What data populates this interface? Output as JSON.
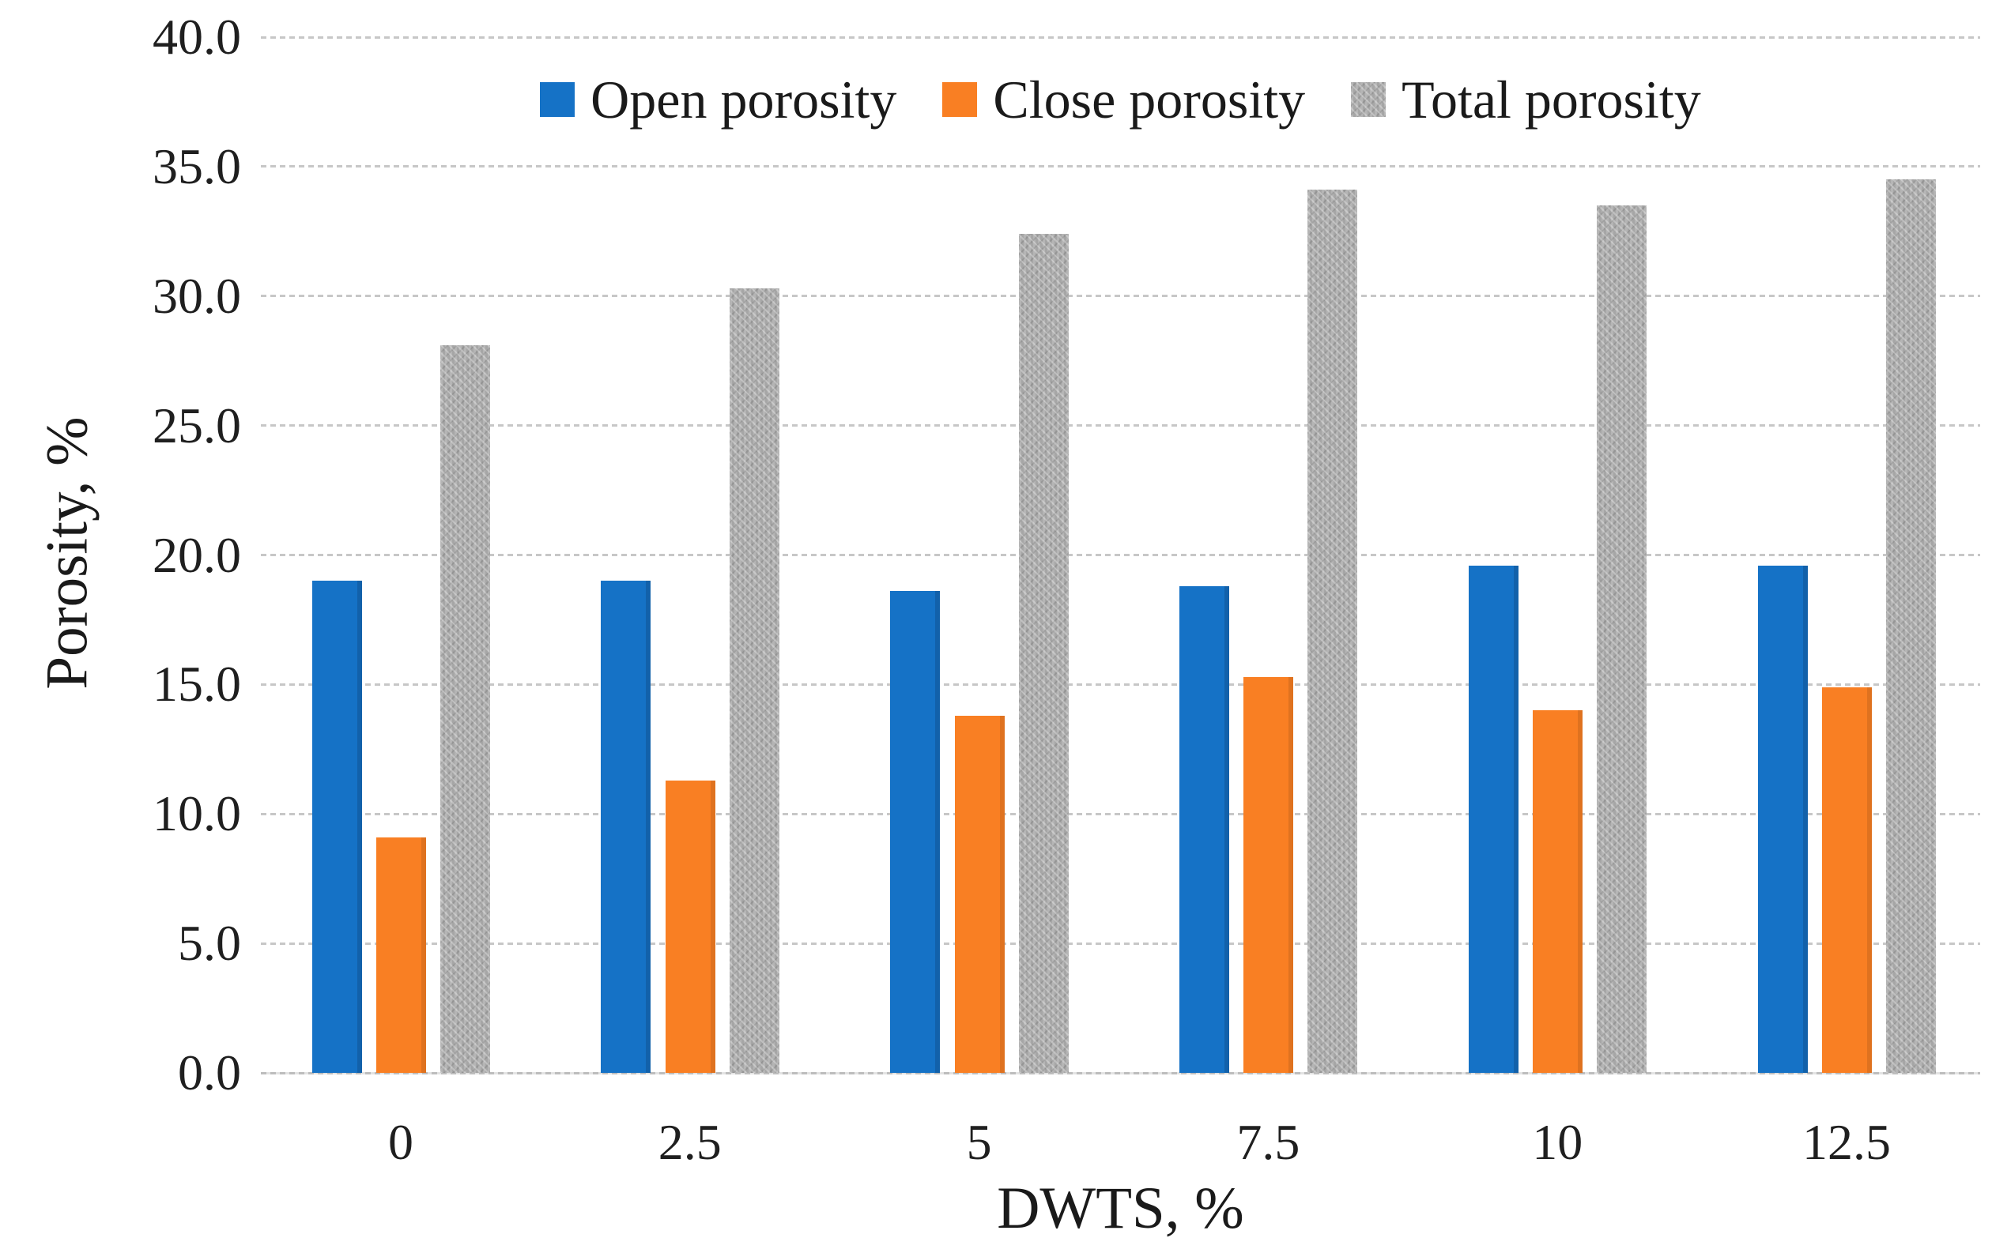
{
  "figure_background": "#ffffff",
  "chart_data": {
    "type": "bar",
    "title": "",
    "xlabel": "DWTS, %",
    "ylabel": "Porosity, %",
    "categories": [
      "0",
      "2.5",
      "5",
      "7.5",
      "10",
      "12.5"
    ],
    "series": [
      {
        "name": "Open porosity",
        "color": "#1572c6",
        "textured": false,
        "values": [
          19.0,
          19.0,
          18.6,
          18.8,
          19.6,
          19.6
        ]
      },
      {
        "name": "Close porosity",
        "color": "#f97f23",
        "textured": false,
        "values": [
          9.1,
          11.3,
          13.8,
          15.3,
          14.0,
          14.9
        ]
      },
      {
        "name": "Total porosity",
        "color": "#adadad",
        "textured": true,
        "values": [
          28.1,
          30.3,
          32.4,
          34.1,
          33.5,
          34.5
        ]
      }
    ],
    "ylim": [
      0,
      40
    ],
    "ytick_step": 5,
    "yticks": [
      "0.0",
      "5.0",
      "10.0",
      "15.0",
      "20.0",
      "25.0",
      "30.0",
      "35.0",
      "40.0"
    ],
    "grid": "horizontal-dashed",
    "legend_position": "top-center",
    "colors": {
      "gridline": "#c7c7c7",
      "baseline": "#bdbdbd",
      "text": "#1a1a1a"
    }
  }
}
